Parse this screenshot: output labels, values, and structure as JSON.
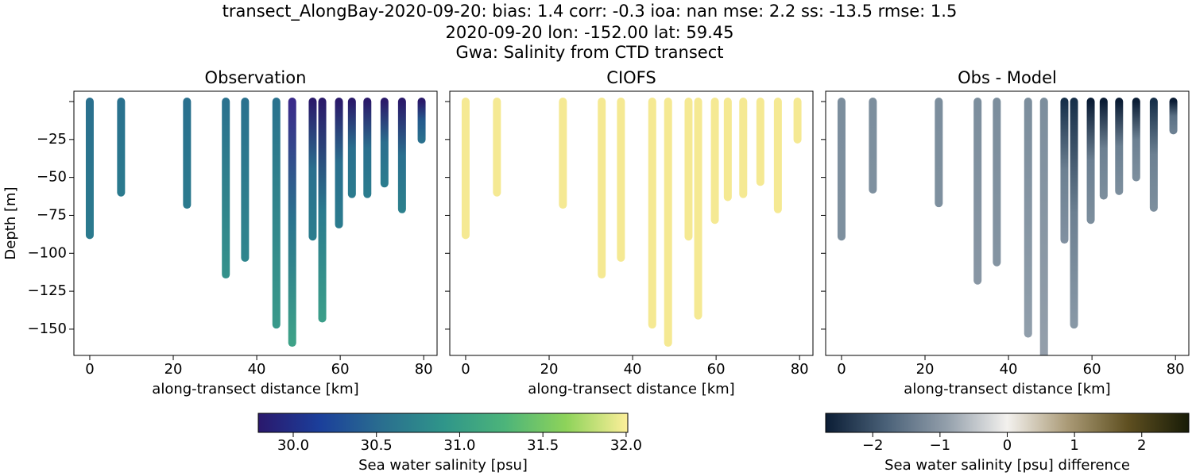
{
  "header": {
    "title": [
      "transect_AlongBay-2020-09-20: bias: 1.4  corr: -0.3  ioa: nan  mse: 2.2  ss: -13.5  rmse: 1.5",
      "2020-09-20 lon: -152.00 lat: 59.45",
      "Gwa: Salinity from CTD transect"
    ]
  },
  "chart_data": [
    {
      "type": "scatter",
      "title": "Observation",
      "xlabel": "along-transect distance [km]",
      "ylabel": "Depth [m]",
      "xlim": [
        -3.8,
        83.2
      ],
      "ylim": [
        -167.3,
        6.8
      ],
      "xticks": [
        0,
        20,
        40,
        60,
        80
      ],
      "yticks": [
        0,
        {
          "value": -25,
          "label": "−25"
        },
        {
          "value": -50,
          "label": "−50"
        },
        {
          "value": -75,
          "label": "−75"
        },
        {
          "value": -100,
          "label": "−100"
        },
        {
          "value": -125,
          "label": "−125"
        },
        {
          "value": -150,
          "label": "−150"
        }
      ],
      "x": [
        0,
        7.5,
        23.3,
        32.6,
        37.2,
        44.7,
        48.5,
        53.4,
        55.7,
        59.7,
        62.8,
        66.5,
        70.6,
        74.8,
        79.5
      ],
      "values": [
        -88,
        -60,
        -68,
        -114,
        -103,
        -147,
        -159,
        -89,
        -143,
        -81,
        -61,
        -61,
        -54,
        -71,
        -25
      ],
      "colors": [
        [
          "#2a708e",
          "#2b7a8e"
        ],
        [
          "#2a718e",
          "#2b7a8e"
        ],
        [
          "#2a708e",
          "#2b7a8e"
        ],
        [
          "#2a718e",
          "#34918b"
        ],
        [
          "#2a718e",
          "#2f858d"
        ],
        [
          "#2a728e",
          "#38998a"
        ],
        [
          "#3a2a8a",
          "#2a748e",
          "#3ea288"
        ],
        [
          "#2a1a6a",
          "#2a6f8e",
          "#2b7d8e"
        ],
        [
          "#2a1a6a",
          "#2a7a8e",
          "#3b9e89"
        ],
        [
          "#2a1a6a",
          "#2a6f8e",
          "#2b7b8e"
        ],
        [
          "#2a1a6a",
          "#2a6f8e",
          "#2b7b8e"
        ],
        [
          "#2a1a6a",
          "#2a6f8e",
          "#2b7c8e"
        ],
        [
          "#2a1a6a",
          "#2a6e8e",
          "#2b7c8e"
        ],
        [
          "#2a1a6a",
          "#2a6f8e",
          "#2c808d"
        ],
        [
          "#2a1a6a",
          "#245a8d",
          "#2a708e"
        ]
      ]
    },
    {
      "type": "scatter",
      "title": "CIOFS",
      "xlabel": "along-transect distance [km]",
      "xlim": [
        -3.8,
        83.2
      ],
      "ylim": [
        -167.3,
        6.8
      ],
      "xticks": [
        0,
        20,
        40,
        60,
        80
      ],
      "yticks": [
        0,
        -25,
        -50,
        -75,
        -100,
        -125,
        -150
      ],
      "x": [
        0,
        7.5,
        23.3,
        32.6,
        37.2,
        44.7,
        48.5,
        53.4,
        55.7,
        59.7,
        62.8,
        66.5,
        70.6,
        74.8,
        79.5
      ],
      "values": [
        -88,
        -60,
        -68,
        -114,
        -103,
        -147,
        -159,
        -89,
        -141,
        -78,
        -63,
        -61,
        -53,
        -71,
        -25
      ],
      "colors": [
        [
          "#f5e993",
          "#f5e993"
        ],
        [
          "#f5e993",
          "#f5e993"
        ],
        [
          "#f5e993",
          "#f5e993"
        ],
        [
          "#f5e993",
          "#f5e993"
        ],
        [
          "#f5e993",
          "#f5e993"
        ],
        [
          "#f5e993",
          "#f5e993"
        ],
        [
          "#f5e993",
          "#f5e993"
        ],
        [
          "#f5e993",
          "#f5e993"
        ],
        [
          "#f5e993",
          "#f5e993"
        ],
        [
          "#f5e993",
          "#f5e993"
        ],
        [
          "#f5e993",
          "#f5e993"
        ],
        [
          "#f5e993",
          "#f5e993"
        ],
        [
          "#f5e993",
          "#f5e993"
        ],
        [
          "#f5e993",
          "#f5e993"
        ],
        [
          "#f5e993",
          "#f5e993"
        ]
      ]
    },
    {
      "type": "scatter",
      "title": "Obs - Model",
      "xlabel": "along-transect distance [km]",
      "xlim": [
        -3.8,
        83.2
      ],
      "ylim": [
        -167.3,
        6.8
      ],
      "xticks": [
        0,
        20,
        40,
        60,
        80
      ],
      "yticks": [
        0,
        -25,
        -50,
        -75,
        -100,
        -125,
        -150
      ],
      "x": [
        0,
        7.5,
        23.3,
        32.6,
        37.2,
        44.7,
        48.5,
        53.4,
        55.7,
        59.7,
        62.8,
        66.5,
        70.6,
        74.8,
        79.5
      ],
      "values": [
        -89,
        -58,
        -67,
        -118,
        -106,
        -153,
        -170,
        -91,
        -147,
        -78,
        -62,
        -59,
        -50,
        -70,
        -19
      ],
      "colors": [
        [
          "#7c8e9d",
          "#7e909f"
        ],
        [
          "#7c8e9d",
          "#7e909f"
        ],
        [
          "#7c8e9d",
          "#7e909f"
        ],
        [
          "#7c8e9d",
          "#8896a4"
        ],
        [
          "#7c8e9d",
          "#8494a2"
        ],
        [
          "#7c8e9d",
          "#909eab"
        ],
        [
          "#7c8e9d",
          "#949fab"
        ],
        [
          "#17304a",
          "#6c8092",
          "#8090a0"
        ],
        [
          "#17304a",
          "#6c8092",
          "#8898a6"
        ],
        [
          "#0b1d35",
          "#6c8092",
          "#7c8e9d"
        ],
        [
          "#0b1d35",
          "#6c8092",
          "#7c8e9d"
        ],
        [
          "#0b1d35",
          "#6c8092",
          "#7c8e9d"
        ],
        [
          "#0b1d35",
          "#6c8092",
          "#7c8e9d"
        ],
        [
          "#17304a",
          "#6c8092",
          "#7c8e9d"
        ],
        [
          "#0b1d35",
          "#5a7084",
          "#6c8092"
        ]
      ]
    }
  ],
  "colorbars": [
    {
      "label": "Sea water salinity [psu]",
      "lim": [
        29.79,
        32.01
      ],
      "ticks": [
        {
          "value": 30,
          "label": "30.0"
        },
        30.5,
        {
          "value": 31,
          "label": "31.0"
        },
        31.5,
        {
          "value": 32,
          "label": "32.0"
        }
      ],
      "colors": [
        "#2a186c",
        "#1b3f9b",
        "#2a6e8f",
        "#2f958a",
        "#4cb47a",
        "#8ed35a",
        "#fdef9a"
      ]
    },
    {
      "label": "Sea water salinity [psu] difference",
      "lim": [
        -2.7,
        2.7
      ],
      "ticks": [
        {
          "value": -2,
          "label": "−2"
        },
        {
          "value": -1,
          "label": "−1"
        },
        0,
        1,
        2
      ],
      "colors": [
        "#0b1d35",
        "#4a6178",
        "#939fab",
        "#f3f1ee",
        "#aa9a76",
        "#5e4f20",
        "#181c07"
      ]
    }
  ]
}
